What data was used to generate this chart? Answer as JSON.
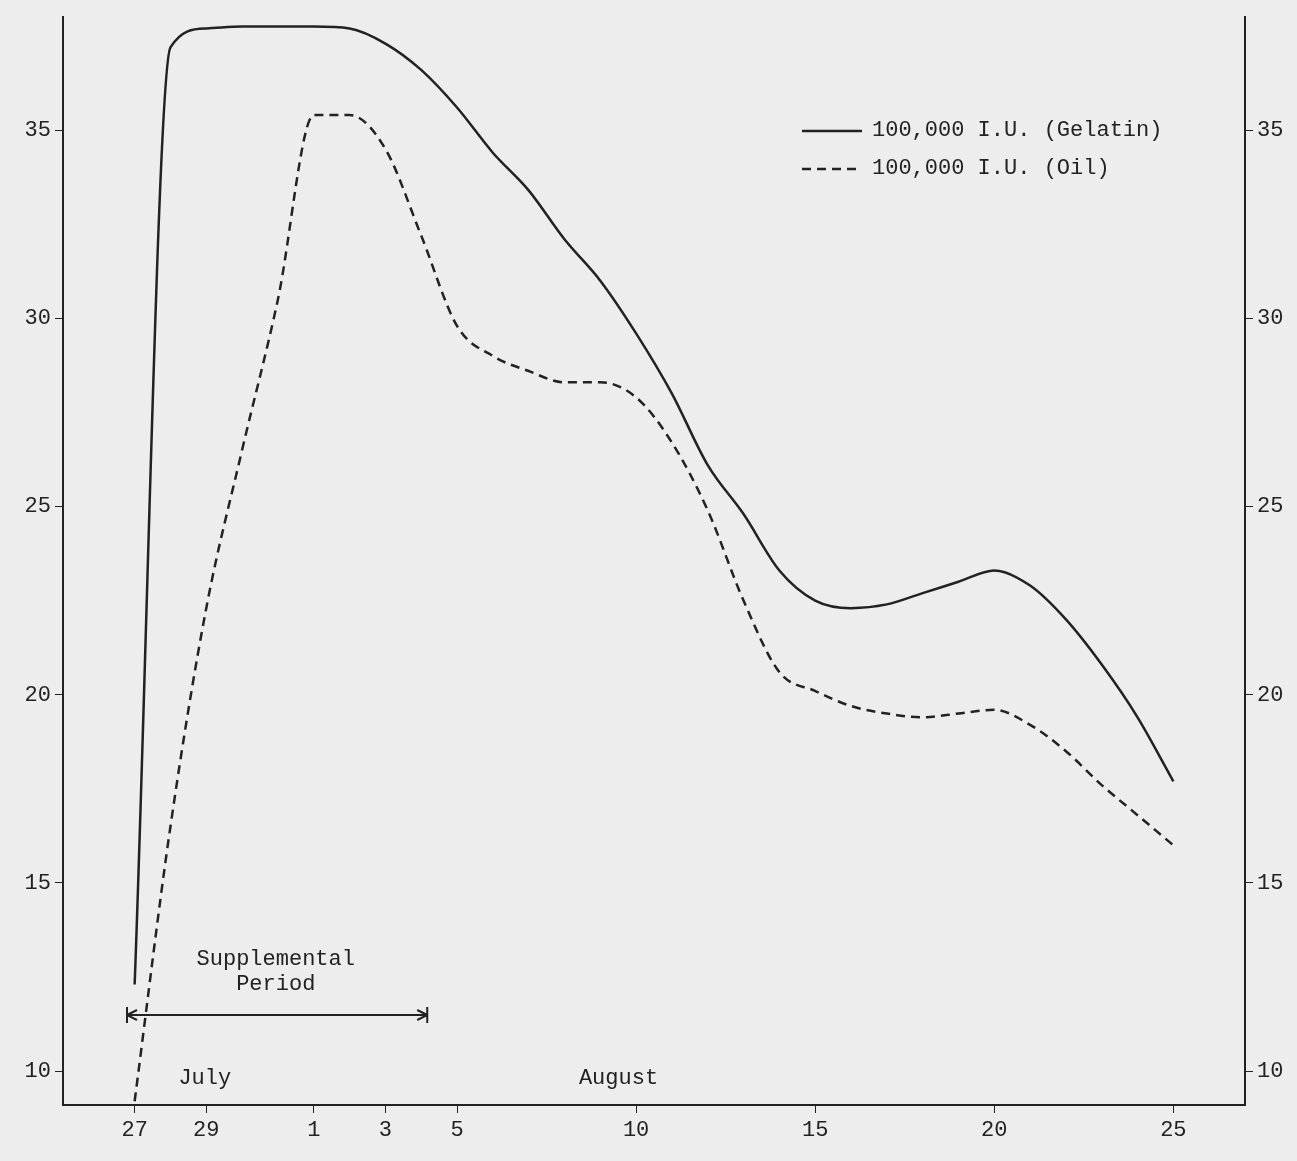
{
  "chart_data": {
    "type": "line",
    "xlim": [
      "--07-25",
      "--08-27"
    ],
    "xticks": [
      {
        "value": "--07-27",
        "label": "27"
      },
      {
        "value": "--07-29",
        "label": "29"
      },
      {
        "value": "--08-01",
        "label": "1"
      },
      {
        "value": "--08-03",
        "label": "3"
      },
      {
        "value": "--08-05",
        "label": "5"
      },
      {
        "value": "--08-10",
        "label": "10"
      },
      {
        "value": "--08-15",
        "label": "15"
      },
      {
        "value": "--08-20",
        "label": "20"
      },
      {
        "value": "--08-25",
        "label": "25"
      }
    ],
    "x": [
      "--07-27",
      "--07-28",
      "--07-29",
      "--07-30",
      "--07-31",
      "--08-01",
      "--08-02",
      "--08-03",
      "--08-04",
      "--08-05",
      "--08-06",
      "--08-07",
      "--08-08",
      "--08-09",
      "--08-10",
      "--08-11",
      "--08-12",
      "--08-13",
      "--08-14",
      "--08-15",
      "--08-16",
      "--08-17",
      "--08-18",
      "--08-19",
      "--08-20",
      "--08-21",
      "--08-22",
      "--08-23",
      "--08-24",
      "--08-25"
    ],
    "ylim": [
      9.1,
      38
    ],
    "yticks": [
      10,
      15,
      20,
      25,
      30,
      35
    ],
    "y2lim": [
      9.1,
      38
    ],
    "y2ticks": [
      10,
      15,
      20,
      25,
      30,
      35
    ],
    "legend": "top right",
    "marker": "none",
    "series": [
      {
        "name": "100,000 I.U. (Gelatin)",
        "color": "#222222",
        "line_style": "solid",
        "values": [
          12.3,
          37.2,
          37.7,
          37.75,
          37.75,
          37.75,
          37.7,
          37.3,
          36.6,
          35.6,
          34.4,
          33.4,
          32.1,
          31.0,
          29.6,
          28.0,
          26.1,
          24.8,
          23.3,
          22.5,
          22.3,
          22.4,
          22.7,
          23.0,
          23.3,
          22.9,
          22.0,
          20.8,
          19.4,
          17.7
        ]
      },
      {
        "name": "100,000 I.U. (Oil)",
        "color": "#222222",
        "line_style": "dashed",
        "values": [
          9.2,
          16.5,
          22.3,
          26.5,
          30.5,
          35.4,
          35.4,
          34.5,
          32.2,
          29.8,
          29.0,
          28.6,
          28.3,
          28.3,
          27.9,
          26.7,
          24.9,
          22.5,
          20.6,
          20.1,
          19.7,
          19.5,
          19.4,
          19.5,
          19.6,
          19.2,
          18.5,
          17.6,
          16.8,
          16.0
        ]
      }
    ],
    "annotations": [
      "Supplemental Period",
      "July",
      "August"
    ]
  }
}
